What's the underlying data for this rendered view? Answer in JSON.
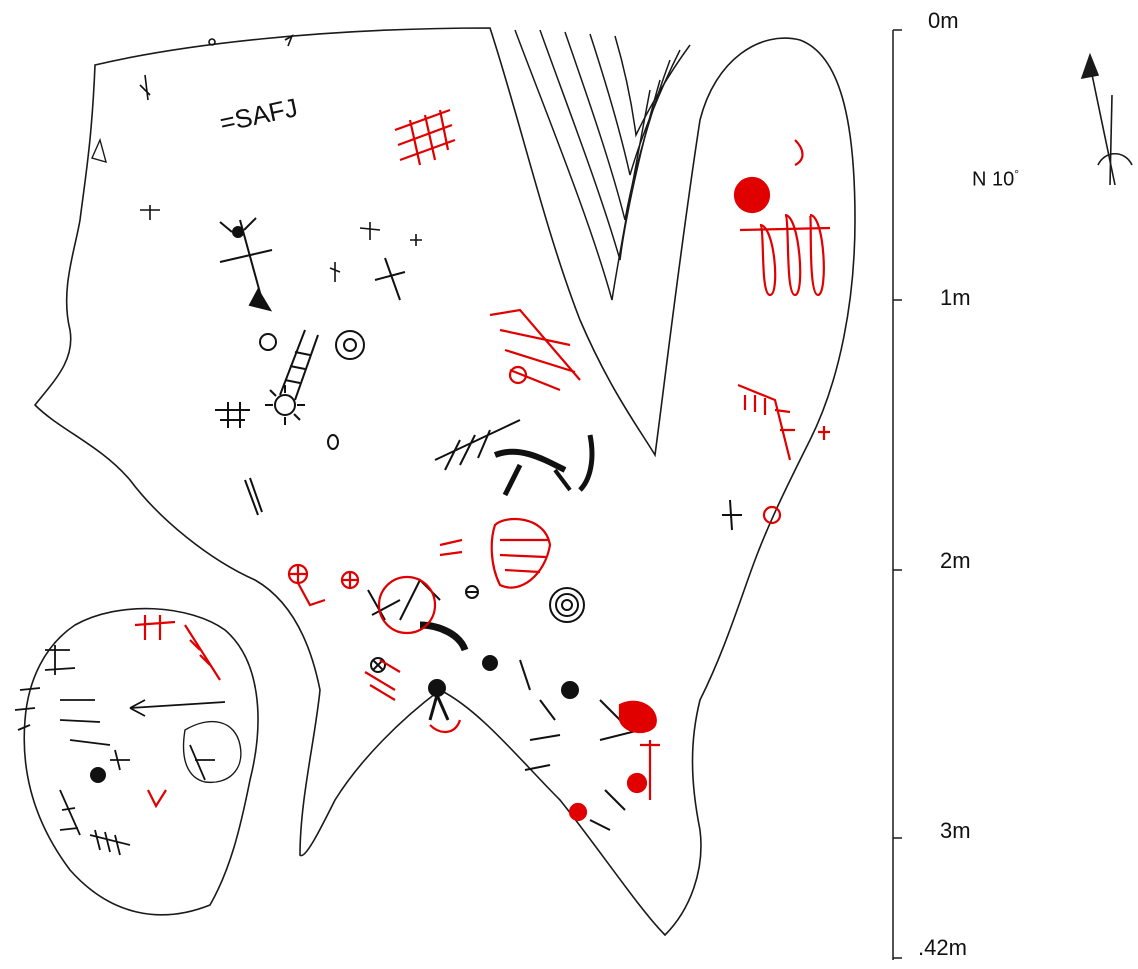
{
  "scale": {
    "ticks": [
      "0m",
      "1m",
      "2m",
      "3m",
      ".42m"
    ]
  },
  "north": {
    "label": "N 10",
    "degree_mark": "°"
  },
  "glyphs": {
    "top_text": "=SAFJ"
  },
  "colors": {
    "outline": "#1a1a1a",
    "black_figures": "#111111",
    "red_figures": "#e00000",
    "background": "#ffffff"
  }
}
